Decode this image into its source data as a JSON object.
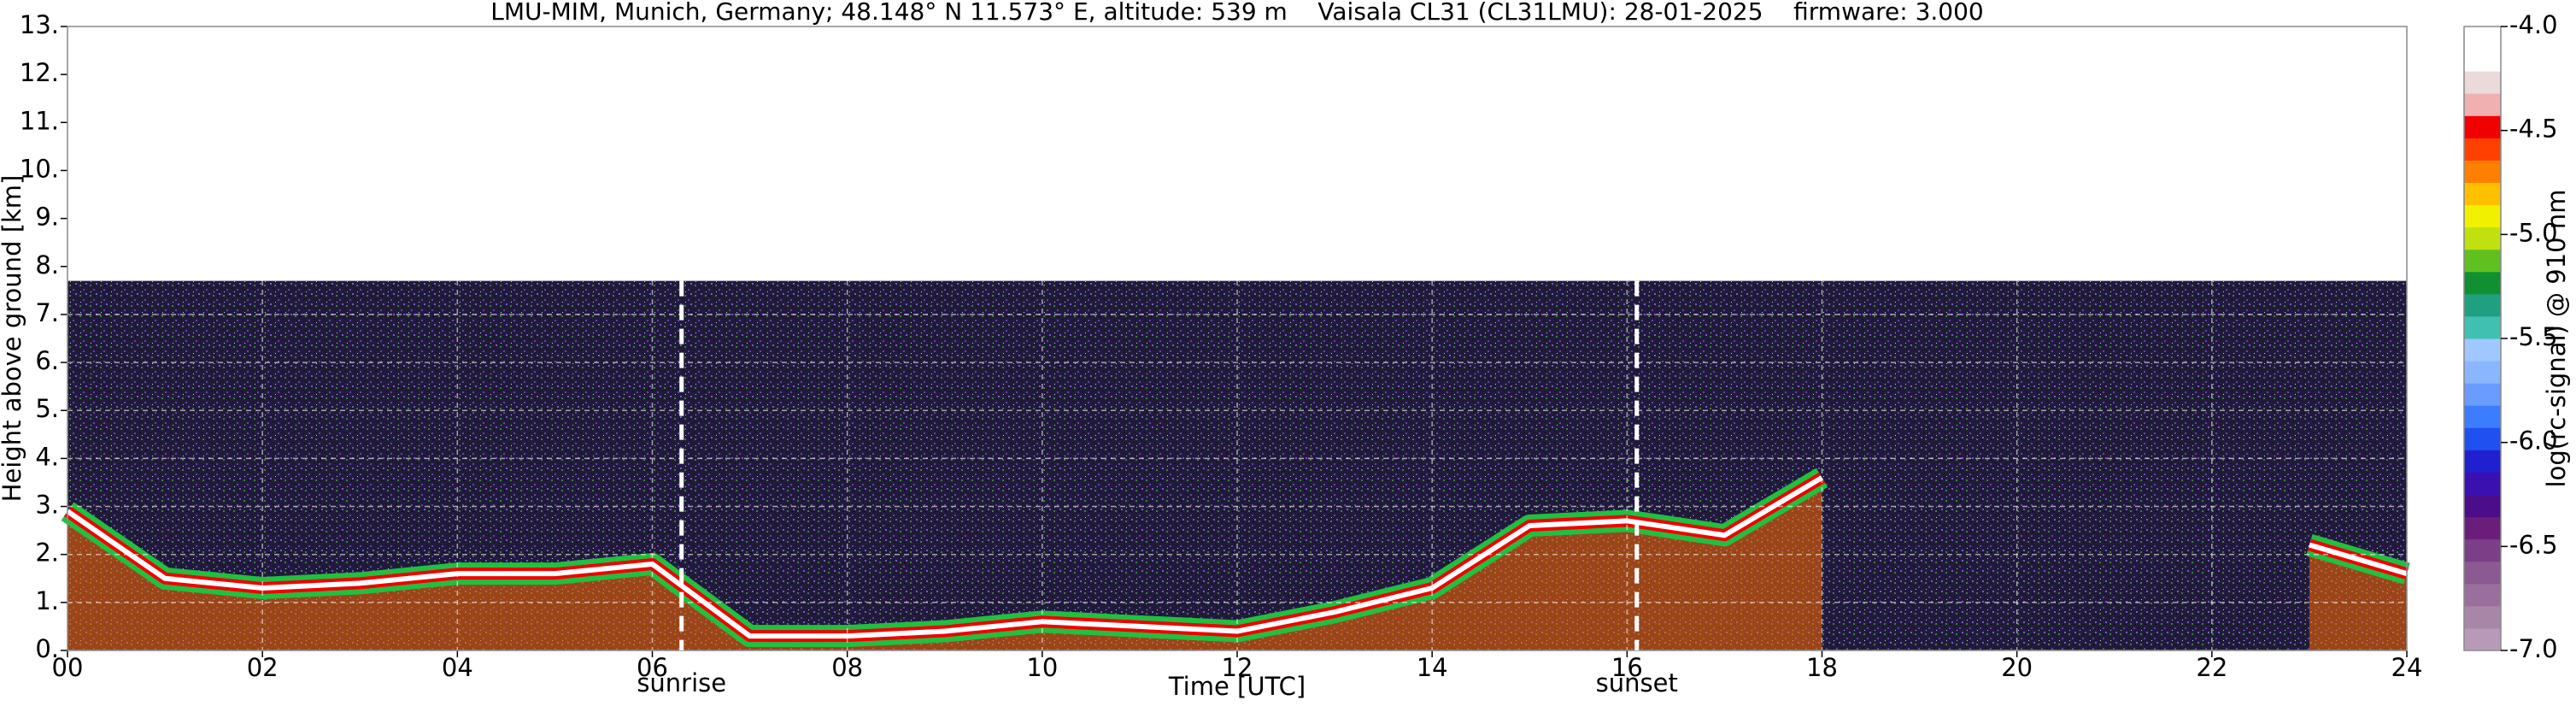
{
  "chart_data": {
    "type": "ceilometer",
    "title": "LMU-MIM, Munich, Germany; 48.148° N 11.573° E, altitude: 539 m    Vaisala CL31 (CL31LMU): 28-01-2025    firmware: 3.000",
    "xlabel": "Time [UTC]",
    "ylabel": "Height above ground [km]",
    "xlim": [
      0,
      24
    ],
    "xticks": [
      {
        "value": 0,
        "label": "00"
      },
      {
        "value": 2,
        "label": "02"
      },
      {
        "value": 4,
        "label": "04"
      },
      {
        "value": 6,
        "label": "06"
      },
      {
        "value": 8,
        "label": "08"
      },
      {
        "value": 10,
        "label": "10"
      },
      {
        "value": 12,
        "label": "12"
      },
      {
        "value": 14,
        "label": "14"
      },
      {
        "value": 16,
        "label": "16"
      },
      {
        "value": 18,
        "label": "18"
      },
      {
        "value": 20,
        "label": "20"
      },
      {
        "value": 22,
        "label": "22"
      },
      {
        "value": 24,
        "label": "24"
      }
    ],
    "ylim": [
      0,
      13
    ],
    "yticks": [
      {
        "value": 0,
        "label": "0."
      },
      {
        "value": 1,
        "label": "1."
      },
      {
        "value": 2,
        "label": "2."
      },
      {
        "value": 3,
        "label": "3."
      },
      {
        "value": 4,
        "label": "4."
      },
      {
        "value": 5,
        "label": "5."
      },
      {
        "value": 6,
        "label": "6."
      },
      {
        "value": 7,
        "label": "7."
      },
      {
        "value": 8,
        "label": "8."
      },
      {
        "value": 9,
        "label": "9."
      },
      {
        "value": 10,
        "label": "10."
      },
      {
        "value": 11,
        "label": "11."
      },
      {
        "value": 12,
        "label": "12."
      },
      {
        "value": 13,
        "label": "13."
      }
    ],
    "grid": true,
    "signal_top": 7.7,
    "layer": {
      "x": [
        0,
        1,
        2,
        3,
        4,
        5,
        6,
        7,
        8,
        9,
        10,
        11,
        12,
        13,
        14,
        15,
        16,
        17,
        18,
        19,
        20,
        21,
        22,
        23,
        24
      ],
      "values": [
        2.9,
        1.5,
        1.3,
        1.4,
        1.6,
        1.6,
        1.8,
        0.3,
        0.3,
        0.4,
        0.6,
        0.5,
        0.4,
        0.8,
        1.3,
        2.6,
        2.7,
        2.4,
        3.6,
        null,
        null,
        null,
        null,
        2.2,
        1.6
      ]
    },
    "annotations": [
      {
        "text": "sunrise",
        "x": 6.3
      },
      {
        "text": "sunset",
        "x": 16.1
      }
    ],
    "colorbar": {
      "label": "log(rc-signal) @ 910 nm",
      "lim": [
        -7,
        -4
      ],
      "ticks": [
        {
          "value": -7,
          "label": "-7.0"
        },
        {
          "value": -6.5,
          "label": "-6.5"
        },
        {
          "value": -6,
          "label": "-6.0"
        },
        {
          "value": -5.5,
          "label": "-5.5"
        },
        {
          "value": -5,
          "label": "-5.0"
        },
        {
          "value": -4.5,
          "label": "-4.5"
        },
        {
          "value": -4,
          "label": "-4.0"
        }
      ],
      "colors": [
        "#b89ab8",
        "#a886a8",
        "#9a6f9e",
        "#8c5a92",
        "#7a3f86",
        "#6a1e7a",
        "#4b0d8a",
        "#3a10b0",
        "#2020d0",
        "#2050f0",
        "#3c7cff",
        "#6a9cff",
        "#8ab6ff",
        "#a0c8ff",
        "#40c0b0",
        "#20a080",
        "#109030",
        "#60c020",
        "#c0e010",
        "#f0f000",
        "#ffc000",
        "#ff8000",
        "#ff4000",
        "#f00000",
        "#f0b0b0",
        "#eadada",
        "#ffffff",
        "#ffffff"
      ]
    }
  }
}
